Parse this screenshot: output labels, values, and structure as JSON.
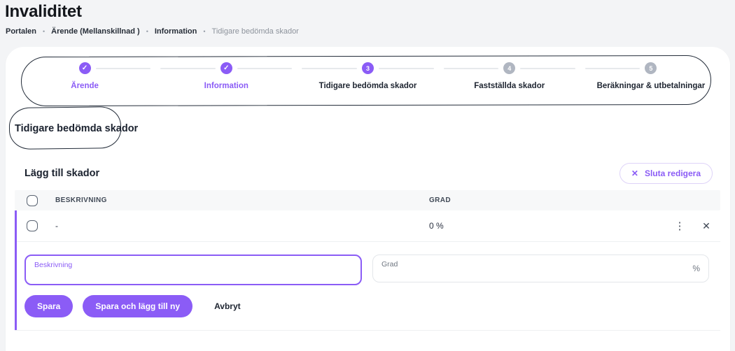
{
  "page": {
    "title": "Invaliditet",
    "breadcrumb": {
      "separator": "•",
      "items": [
        "Portalen",
        "Ärende (Mellanskillnad )",
        "Information",
        "Tidigare bedömda skador"
      ]
    }
  },
  "stepper": {
    "steps": [
      {
        "label": "Ärende",
        "status": "completed"
      },
      {
        "label": "Information",
        "status": "completed"
      },
      {
        "label": "Tidigare bedömda skador",
        "status": "current",
        "number": "3"
      },
      {
        "label": "Fastställda skador",
        "status": "upcoming",
        "number": "4"
      },
      {
        "label": "Beräkningar & utbetalningar",
        "status": "upcoming",
        "number": "5"
      }
    ]
  },
  "section": {
    "heading": "Tidigare bedömda skador",
    "subheading": "Lägg till skador",
    "stop_editing_label": "Sluta redigera"
  },
  "table": {
    "columns": {
      "beskrivning": "BESKRIVNING",
      "grad": "GRAD"
    },
    "rows": [
      {
        "beskrivning": "-",
        "grad": "0 %"
      }
    ]
  },
  "form": {
    "beskrivning": {
      "label": "Beskrivning",
      "value": ""
    },
    "grad": {
      "label": "Grad",
      "value": "",
      "suffix": "%"
    }
  },
  "buttons": {
    "save": "Spara",
    "save_and_new": "Spara och lägg till ny",
    "cancel": "Avbryt"
  },
  "icons": {
    "check": "✓",
    "close": "✕",
    "kebab": "⋮"
  },
  "colors": {
    "accent": "#8b5cf6",
    "inactive_step": "#b0b6c1",
    "annotation_stroke": "#222b38"
  }
}
